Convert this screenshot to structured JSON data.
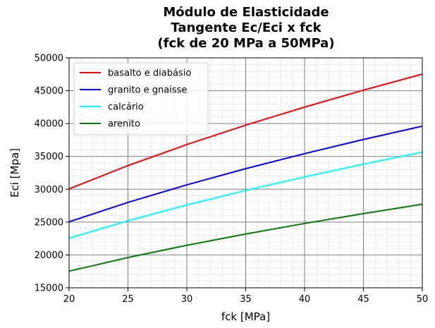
{
  "chart_data": {
    "type": "line",
    "title_lines": [
      "Módulo de Elasticidade",
      "Tangente Ec/Eci x fck",
      "(fck de 20 MPa a 50MPa)"
    ],
    "xlabel": "fck [MPa]",
    "ylabel": "Eci [Mpa]",
    "xlim": [
      20,
      50
    ],
    "ylim": [
      15000,
      50000
    ],
    "x_ticks": [
      20,
      25,
      30,
      35,
      40,
      45,
      50
    ],
    "y_ticks": [
      15000,
      20000,
      25000,
      30000,
      35000,
      40000,
      45000,
      50000
    ],
    "grid": true,
    "minor_grid": true,
    "legend_position": "upper-left",
    "x": [
      20,
      25,
      30,
      35,
      40,
      45,
      50
    ],
    "series": [
      {
        "name": "basalto e diabásio",
        "color": "#ff0000",
        "values": [
          30050,
          33600,
          36800,
          39750,
          42500,
          45080,
          47520
        ]
      },
      {
        "name": "granito e gnaisse",
        "color": "#0000ff",
        "values": [
          25040,
          28000,
          30670,
          33130,
          35420,
          37570,
          39600
        ]
      },
      {
        "name": "calcário",
        "color": "#00ffff",
        "values": [
          22540,
          25200,
          27600,
          29810,
          31870,
          33810,
          35640
        ]
      },
      {
        "name": "arenito",
        "color": "#008000",
        "values": [
          17530,
          19600,
          21470,
          23190,
          24790,
          26290,
          27720
        ]
      }
    ]
  }
}
